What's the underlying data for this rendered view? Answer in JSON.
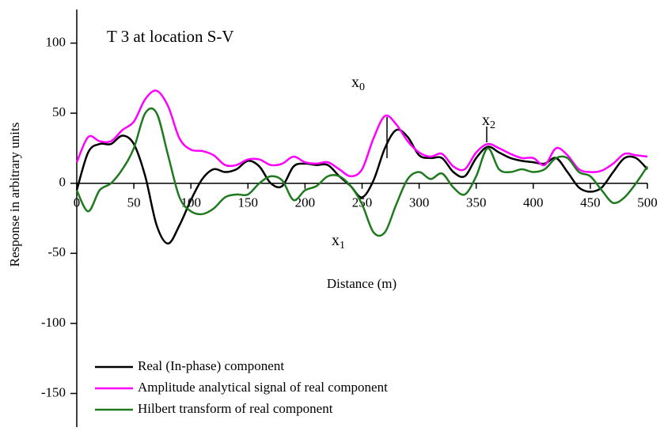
{
  "chart_data": {
    "type": "line",
    "title": "T 3 at location S-V",
    "x_label": "Distance (m)",
    "y_label": "Response in arbitrary units",
    "annotations": [
      {
        "text": "x",
        "subscript": "0"
      },
      {
        "text": "x",
        "subscript": "1"
      },
      {
        "text": "x",
        "subscript": "2"
      }
    ],
    "x": [
      0,
      10,
      20,
      30,
      40,
      50,
      60,
      70,
      80,
      90,
      100,
      110,
      120,
      130,
      140,
      150,
      160,
      170,
      180,
      190,
      200,
      210,
      220,
      230,
      240,
      250,
      260,
      270,
      280,
      290,
      300,
      310,
      320,
      330,
      340,
      350,
      360,
      370,
      380,
      390,
      400,
      410,
      420,
      430,
      440,
      450,
      460,
      470,
      480,
      490,
      500
    ],
    "series": [
      {
        "name": "Real (In-phase) component",
        "color": "#000000",
        "values": [
          -5,
          22,
          28,
          28,
          34,
          28,
          5,
          -30,
          -43,
          -30,
          -12,
          3,
          10,
          8,
          10,
          16,
          12,
          0,
          -2,
          12,
          14,
          13,
          13,
          5,
          -2,
          -10,
          2,
          25,
          38,
          33,
          20,
          18,
          18,
          8,
          5,
          18,
          26,
          22,
          18,
          16,
          15,
          14,
          18,
          8,
          -3,
          -6,
          -3,
          8,
          18,
          18,
          10
        ]
      },
      {
        "name": "Amplitude analytical signal of real component",
        "color": "#ff00ff",
        "values": [
          15,
          33,
          30,
          30,
          38,
          44,
          60,
          66,
          55,
          32,
          24,
          23,
          20,
          13,
          13,
          17,
          17,
          13,
          14,
          19,
          15,
          14,
          15,
          10,
          5,
          10,
          32,
          48,
          42,
          30,
          22,
          19,
          21,
          12,
          10,
          22,
          28,
          25,
          21,
          18,
          18,
          13,
          25,
          20,
          10,
          8,
          9,
          14,
          21,
          20,
          19
        ]
      },
      {
        "name": "Hilbert transform of real component",
        "color": "#1f7a1f",
        "values": [
          -5,
          -20,
          -5,
          0,
          10,
          25,
          50,
          50,
          20,
          -10,
          -20,
          -22,
          -18,
          -10,
          -8,
          -8,
          0,
          5,
          2,
          -12,
          -5,
          -2,
          5,
          5,
          -2,
          -15,
          -35,
          -35,
          -15,
          3,
          8,
          3,
          7,
          -3,
          -8,
          5,
          25,
          10,
          8,
          10,
          8,
          10,
          18,
          18,
          8,
          5,
          -5,
          -14,
          -10,
          0,
          12
        ]
      }
    ],
    "xlim": [
      0,
      500
    ],
    "ylim": [
      -174,
      124
    ],
    "xticks": [
      0,
      50,
      100,
      150,
      200,
      250,
      300,
      350,
      400,
      450,
      500
    ],
    "yticks": [
      -150,
      -100,
      -50,
      0,
      50,
      100
    ],
    "legend": "bottom-left",
    "grid": false
  }
}
